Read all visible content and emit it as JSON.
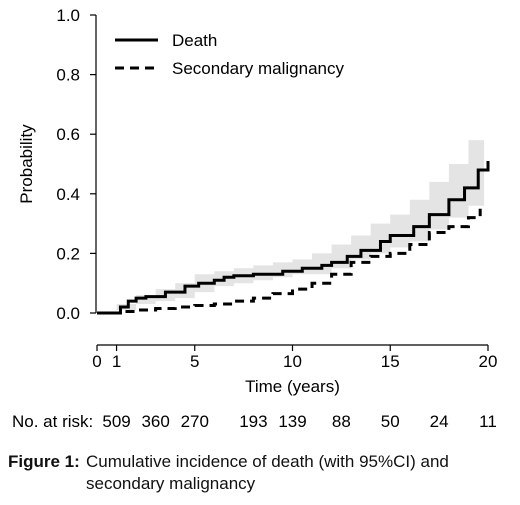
{
  "chart_data": {
    "type": "line",
    "xlabel": "Time (years)",
    "ylabel": "Probability",
    "xlim": [
      0,
      20
    ],
    "ylim": [
      0,
      1
    ],
    "x_ticks": [
      "0",
      "1",
      "5",
      "10",
      "15",
      "20"
    ],
    "x_tick_values": [
      0,
      1,
      5,
      10,
      15,
      20
    ],
    "y_ticks": [
      "0.0",
      "0.2",
      "0.4",
      "0.6",
      "0.8",
      "1.0"
    ],
    "y_tick_values": [
      0,
      0.2,
      0.4,
      0.6,
      0.8,
      1.0
    ],
    "legend_position": "top-left",
    "grid": false,
    "series": [
      {
        "name": "Death",
        "style": "solid",
        "color": "#000000",
        "x": [
          0,
          1.2,
          1.6,
          2.0,
          2.5,
          3.5,
          4.5,
          5.2,
          6.0,
          6.5,
          7.0,
          8.0,
          9.5,
          10.5,
          11.5,
          12.0,
          12.8,
          13.5,
          14.5,
          15.0,
          16.2,
          17.0,
          18.0,
          18.8,
          19.5,
          20.0
        ],
        "y": [
          0.0,
          0.02,
          0.04,
          0.05,
          0.055,
          0.07,
          0.09,
          0.1,
          0.11,
          0.12,
          0.125,
          0.13,
          0.14,
          0.15,
          0.16,
          0.17,
          0.19,
          0.21,
          0.24,
          0.26,
          0.29,
          0.33,
          0.38,
          0.42,
          0.48,
          0.51
        ]
      },
      {
        "name": "Secondary malignancy",
        "style": "dashed",
        "color": "#000000",
        "x": [
          0,
          1.2,
          2.0,
          3.0,
          4.0,
          5.0,
          6.0,
          7.0,
          8.0,
          9.0,
          10.0,
          11.0,
          12.0,
          13.0,
          14.0,
          15.0,
          16.0,
          17.0,
          18.0,
          19.0,
          19.6
        ],
        "y": [
          0.0,
          0.005,
          0.01,
          0.015,
          0.02,
          0.025,
          0.03,
          0.04,
          0.05,
          0.065,
          0.08,
          0.1,
          0.13,
          0.17,
          0.19,
          0.2,
          0.23,
          0.27,
          0.29,
          0.32,
          0.35
        ]
      }
    ],
    "ci_band": {
      "series": "Death",
      "color": "#e4e4e4",
      "x": [
        0,
        1,
        2,
        3,
        4,
        5,
        6,
        7,
        8,
        9,
        10,
        11,
        12,
        13,
        14,
        15,
        16,
        17,
        18,
        19,
        19.8
      ],
      "lower": [
        0.0,
        0.01,
        0.03,
        0.04,
        0.05,
        0.07,
        0.09,
        0.1,
        0.11,
        0.12,
        0.13,
        0.13,
        0.15,
        0.18,
        0.2,
        0.22,
        0.24,
        0.28,
        0.32,
        0.36,
        0.38
      ],
      "upper": [
        0.0,
        0.03,
        0.06,
        0.08,
        0.1,
        0.13,
        0.14,
        0.15,
        0.16,
        0.17,
        0.18,
        0.2,
        0.23,
        0.26,
        0.3,
        0.33,
        0.38,
        0.44,
        0.5,
        0.58,
        0.63
      ]
    },
    "at_risk": {
      "label": "No. at risk:",
      "x": [
        1,
        3,
        5,
        8,
        10,
        12.5,
        15,
        17.5,
        20
      ],
      "values": [
        "509",
        "360",
        "270",
        "193",
        "139",
        "88",
        "50",
        "24",
        "11"
      ]
    }
  },
  "caption": {
    "label": "Figure 1:",
    "line1": "Cumulative incidence of death (with 95%CI) and",
    "line2": "secondary malignancy"
  }
}
